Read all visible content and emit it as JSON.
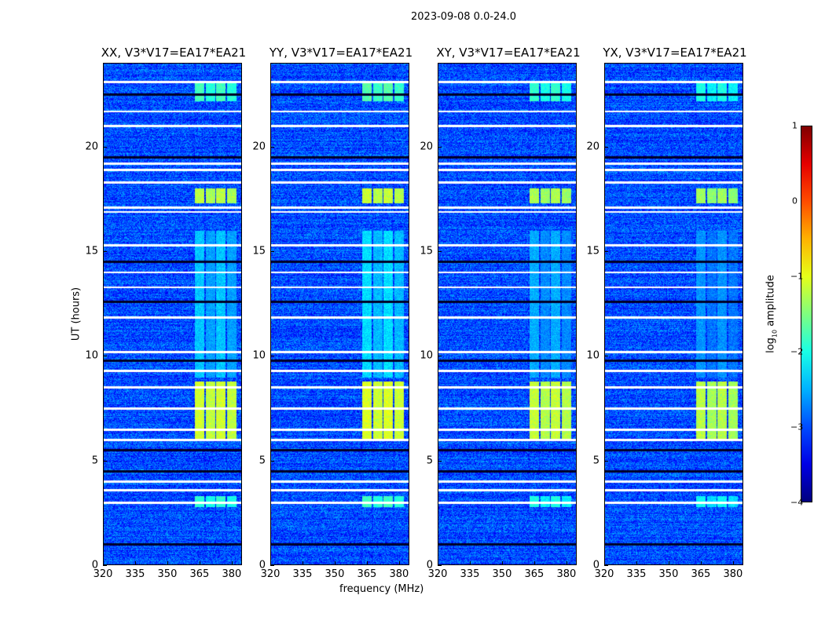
{
  "suptitle": "2023-09-08 0.0-24.0",
  "chart_data": {
    "type": "heatmap",
    "xlabel": "frequency (MHz)",
    "ylabel": "UT (hours)",
    "xlim": [
      320,
      384.8
    ],
    "ylim": [
      0,
      24
    ],
    "xticks": [
      "320",
      "335",
      "350",
      "365",
      "380"
    ],
    "xtick_values": [
      320,
      335,
      350,
      365,
      380
    ],
    "yticks": [
      "0",
      "5",
      "10",
      "15",
      "20"
    ],
    "ytick_values": [
      0,
      5,
      10,
      15,
      20
    ],
    "panels": [
      {
        "title": "XX, V3*V17=EA17*EA21",
        "rfi_scale": 1.0
      },
      {
        "title": "YY, V3*V17=EA17*EA21",
        "rfi_scale": 1.05
      },
      {
        "title": "XY, V3*V17=EA17*EA21",
        "rfi_scale": 0.95
      },
      {
        "title": "YX, V3*V17=EA17*EA21",
        "rfi_scale": 0.9
      }
    ],
    "background_log_amplitude": -3.0,
    "rfi_band_mhz": [
      362,
      382
    ],
    "rfi_events": [
      {
        "hours": [
          6.0,
          8.8
        ],
        "log_amplitude": -1.1
      },
      {
        "hours": [
          17.3,
          18.0
        ],
        "log_amplitude": -1.2
      },
      {
        "hours": [
          22.2,
          23.1
        ],
        "log_amplitude": -1.8
      },
      {
        "hours": [
          2.8,
          3.3
        ],
        "log_amplitude": -1.9
      },
      {
        "hours": [
          9.0,
          16.0
        ],
        "log_amplitude": -2.4
      }
    ],
    "flagged_hours": [
      23.1,
      21.7,
      21.0,
      19.2,
      18.9,
      18.3,
      17.1,
      16.9,
      15.3,
      14.0,
      13.3,
      11.85,
      10.2,
      9.3,
      8.5,
      7.5,
      6.5,
      6.0,
      4.0,
      3.6,
      3.0
    ],
    "zero_hours": [
      1.0,
      4.5,
      5.5,
      9.8,
      12.6,
      14.5,
      19.5,
      22.5
    ],
    "colorbar": {
      "label": "log10 amplitude",
      "label_main": "log",
      "label_sub": "10",
      "label_rest": " amplitude",
      "ticks": [
        "1",
        "0",
        "−1",
        "−2",
        "−3",
        "−4"
      ],
      "tick_values": [
        1,
        0,
        -1,
        -2,
        -3,
        -4
      ],
      "range": [
        -4,
        1
      ],
      "colormap": "jet"
    }
  }
}
